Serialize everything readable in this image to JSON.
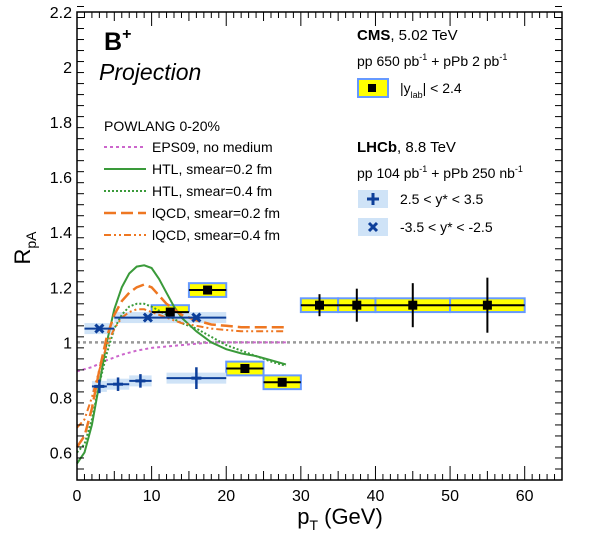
{
  "chart_data": {
    "type": "scatter",
    "xlabel": "p_T (GeV)",
    "xlabel_main": "p",
    "xlabel_sub": "T",
    "xlabel_unit": " (GeV)",
    "ylabel": "R_pA",
    "ylabel_main": "R",
    "ylabel_sub": "pA",
    "xlim": [
      0,
      65
    ],
    "ylim": [
      0.5,
      2.2
    ],
    "x_ticks": [
      0,
      10,
      20,
      30,
      40,
      50,
      60
    ],
    "y_ticks": [
      0.6,
      0.8,
      1,
      1.2,
      1.4,
      1.6,
      1.8,
      2,
      2.2
    ],
    "reference_line": 1.0,
    "particle_label": "B",
    "particle_charge": "+",
    "projection_label": "Projection",
    "cms_block": {
      "name": "CMS",
      "energy": ", 5.02 TeV",
      "lumi_pp": "pp 650 pb",
      "lumi_pp_exp": "-1",
      "lumi_mid": " + pPb 2 pb",
      "lumi_ppb_exp": "-1",
      "legend_pre": "|y",
      "legend_sub": "lab",
      "legend_post": "| < 2.4"
    },
    "lhcb_block": {
      "name": "LHCb",
      "energy": ", 8.8 TeV",
      "lumi_pp": "pp 104 pb",
      "lumi_pp_exp": "-1",
      "lumi_mid": " + pPb 250 nb",
      "lumi_ppb_exp": "-1",
      "forward_label": "2.5 < y* < 3.5",
      "backward_label": "-3.5 < y* < -2.5"
    },
    "model_legend": {
      "header": "POWLANG 0-20%",
      "entries": [
        {
          "label": "EPS09, no medium",
          "color": "#cc66cc"
        },
        {
          "label": "HTL, smear=0.2 fm",
          "color": "#3a9a3a"
        },
        {
          "label": "HTL, smear=0.4 fm",
          "color": "#3a9a3a"
        },
        {
          "label": "lQCD, smear=0.2 fm",
          "color": "#ee7722"
        },
        {
          "label": "lQCD, smear=0.4 fm",
          "color": "#ee7722"
        }
      ]
    },
    "series": [
      {
        "name": "|y_lab| < 2.4",
        "marker": "square",
        "box_color": "#ffff00",
        "edge_color": "#6699ff",
        "points": [
          {
            "x": 12.5,
            "y": 1.11,
            "xlo": 10,
            "xhi": 15,
            "stat": 0.01,
            "sys": 0.025
          },
          {
            "x": 17.5,
            "y": 1.19,
            "xlo": 15,
            "xhi": 20,
            "stat": 0.01,
            "sys": 0.025
          },
          {
            "x": 22.5,
            "y": 0.905,
            "xlo": 20,
            "xhi": 25,
            "stat": 0.01,
            "sys": 0.025
          },
          {
            "x": 27.5,
            "y": 0.855,
            "xlo": 25,
            "xhi": 30,
            "stat": 0.01,
            "sys": 0.025
          },
          {
            "x": 32.5,
            "y": 1.135,
            "xlo": 30,
            "xhi": 35,
            "stat": 0.04,
            "sys": 0.025
          },
          {
            "x": 37.5,
            "y": 1.135,
            "xlo": 35,
            "xhi": 40,
            "stat": 0.06,
            "sys": 0.025
          },
          {
            "x": 45,
            "y": 1.135,
            "xlo": 40,
            "xhi": 50,
            "stat": 0.08,
            "sys": 0.025
          },
          {
            "x": 55,
            "y": 1.135,
            "xlo": 50,
            "xhi": 60,
            "stat": 0.1,
            "sys": 0.025
          }
        ]
      },
      {
        "name": "2.5 < y* < 3.5",
        "marker": "plus",
        "color": "#0d3f9a",
        "box_color": "#cfe3f7",
        "points": [
          {
            "x": 3,
            "y": 0.84,
            "xlo": 2,
            "xhi": 4,
            "stat": 0.01,
            "sys": 0.02
          },
          {
            "x": 5.5,
            "y": 0.848,
            "xlo": 4,
            "xhi": 7,
            "stat": 0.01,
            "sys": 0.02
          },
          {
            "x": 8.5,
            "y": 0.86,
            "xlo": 7,
            "xhi": 10,
            "stat": 0.01,
            "sys": 0.02
          },
          {
            "x": 16,
            "y": 0.87,
            "xlo": 12,
            "xhi": 20,
            "stat": 0.025,
            "sys": 0.02
          }
        ]
      },
      {
        "name": "-3.5 < y* < -2.5",
        "marker": "cross",
        "color": "#0d3f9a",
        "box_color": "#cfe3f7",
        "points": [
          {
            "x": 3,
            "y": 1.05,
            "xlo": 1,
            "xhi": 5,
            "stat": 0.01,
            "sys": 0.02
          },
          {
            "x": 9.5,
            "y": 1.09,
            "xlo": 5,
            "xhi": 12,
            "stat": 0.01,
            "sys": 0.02
          },
          {
            "x": 16,
            "y": 1.09,
            "xlo": 12,
            "xhi": 20,
            "stat": 0.01,
            "sys": 0.02
          }
        ]
      }
    ],
    "curves": [
      {
        "name": "EPS09, no medium",
        "color": "#cc66cc",
        "dash": "3,3",
        "width": 2,
        "x": [
          0,
          2,
          4,
          6,
          8,
          10,
          12,
          14,
          16,
          18,
          20,
          22,
          24,
          26,
          28
        ],
        "y": [
          0.895,
          0.91,
          0.935,
          0.955,
          0.97,
          0.98,
          0.985,
          0.99,
          0.995,
          1.0,
          1.0,
          1.0,
          1.0,
          1.0,
          1.0
        ]
      },
      {
        "name": "HTL, smear=0.2 fm",
        "color": "#3a9a3a",
        "dash": "",
        "width": 2,
        "x": [
          0,
          1,
          2,
          3,
          4,
          5,
          6,
          7,
          8,
          9,
          10,
          11,
          12,
          13,
          14,
          16,
          18,
          20,
          22,
          24,
          26,
          28
        ],
        "y": [
          0.56,
          0.6,
          0.7,
          0.85,
          1.0,
          1.12,
          1.2,
          1.25,
          1.275,
          1.28,
          1.27,
          1.23,
          1.18,
          1.13,
          1.09,
          1.04,
          1.0,
          0.975,
          0.96,
          0.95,
          0.935,
          0.92
        ]
      },
      {
        "name": "HTL, smear=0.4 fm",
        "color": "#3a9a3a",
        "dash": "2,2",
        "width": 2,
        "x": [
          0,
          1,
          2,
          3,
          4,
          5,
          6,
          7,
          8,
          9,
          10,
          12,
          14,
          16,
          18,
          20,
          22,
          24,
          26,
          28
        ],
        "y": [
          0.6,
          0.63,
          0.72,
          0.85,
          0.96,
          1.05,
          1.1,
          1.13,
          1.14,
          1.14,
          1.13,
          1.1,
          1.07,
          1.05,
          1.02,
          0.99,
          0.97,
          0.95,
          0.93,
          0.915
        ]
      },
      {
        "name": "lQCD, smear=0.2 fm",
        "color": "#ee7722",
        "dash": "12,5",
        "width": 2.5,
        "x": [
          0,
          1,
          2,
          3,
          4,
          5,
          6,
          7,
          8,
          9,
          10,
          11,
          12,
          14,
          16,
          18,
          20,
          22,
          24,
          26,
          28
        ],
        "y": [
          0.62,
          0.66,
          0.76,
          0.9,
          1.02,
          1.1,
          1.15,
          1.18,
          1.2,
          1.21,
          1.2,
          1.17,
          1.14,
          1.1,
          1.08,
          1.065,
          1.06,
          1.055,
          1.055,
          1.055,
          1.055
        ]
      },
      {
        "name": "lQCD, smear=0.4 fm",
        "color": "#ee7722",
        "dash": "7,3,2,3,2,3",
        "width": 2,
        "x": [
          0,
          1,
          2,
          3,
          4,
          5,
          6,
          7,
          8,
          9,
          10,
          12,
          14,
          16,
          18,
          20,
          22,
          24,
          26,
          28
        ],
        "y": [
          0.69,
          0.72,
          0.8,
          0.9,
          0.99,
          1.05,
          1.09,
          1.11,
          1.12,
          1.12,
          1.11,
          1.09,
          1.07,
          1.06,
          1.05,
          1.045,
          1.04,
          1.04,
          1.04,
          1.04
        ]
      }
    ]
  }
}
